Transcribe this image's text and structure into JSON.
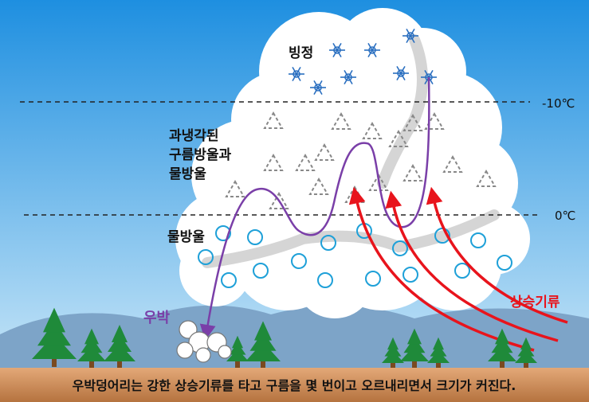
{
  "labels": {
    "ice_crystal": "빙정",
    "supercooled_line1": "과냉각된",
    "supercooled_line2": "구름방울과",
    "supercooled_line3": "물방울",
    "water_drop": "물방울",
    "hail": "우박",
    "updraft": "상승기류",
    "temp_minus10": "-10℃",
    "temp_zero": "0℃"
  },
  "caption": "우박덩어리는 강한 상승기류를 타고 구름을 몇 번이고 오르내리면서 크기가 커진다.",
  "colors": {
    "sky_top": "#1e8fe0",
    "sky_bottom": "#c9e6f7",
    "hail_path": "#7a3fa8",
    "updraft": "#e8141c",
    "droplet": "#1ea0d8",
    "ice": "#2a6fc0",
    "ground": "#c98a5a"
  }
}
